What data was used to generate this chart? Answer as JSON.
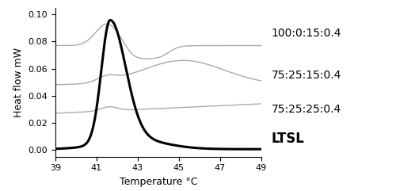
{
  "xlabel": "Temperature °C",
  "ylabel": "Heat flow mW",
  "xlim": [
    39,
    49
  ],
  "ylim": [
    -0.005,
    0.105
  ],
  "xticks": [
    39,
    41,
    43,
    45,
    47,
    49
  ],
  "yticks": [
    0,
    0.02,
    0.04,
    0.06,
    0.08,
    0.1
  ],
  "legend_labels": [
    "100:0:15:0.4",
    "75:25:15:0.4",
    "75:25:25:0.4",
    "LTSL"
  ],
  "curve_colors": [
    "#aaaaaa",
    "#aaaaaa",
    "#aaaaaa",
    "#000000"
  ],
  "curve_linewidths": [
    1.0,
    1.0,
    1.0,
    2.2
  ],
  "background_color": "#ffffff",
  "label_fontsizes": [
    10,
    10,
    10,
    12
  ],
  "label_fontweights": [
    "normal",
    "normal",
    "normal",
    "bold"
  ]
}
